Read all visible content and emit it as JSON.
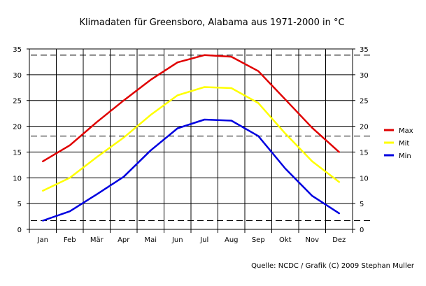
{
  "chart_data": {
    "type": "line",
    "title": "Klimadaten für Greensboro, Alabama aus 1971-2000 in °C",
    "categories": [
      "Jan",
      "Feb",
      "Mär",
      "Apr",
      "Mai",
      "Jun",
      "Jul",
      "Aug",
      "Sep",
      "Okt",
      "Nov",
      "Dez"
    ],
    "ylim": [
      0,
      35
    ],
    "y_ticks": [
      0,
      5,
      10,
      15,
      20,
      25,
      30,
      35
    ],
    "grid": true,
    "legend_position": "right",
    "reference_lines": [
      33.8,
      18.1,
      1.7
    ],
    "series": [
      {
        "name": "Max",
        "color": "#e00000",
        "values": [
          13.2,
          16.3,
          20.8,
          25.0,
          29.0,
          32.4,
          33.8,
          33.5,
          30.7,
          25.2,
          19.7,
          15.0
        ]
      },
      {
        "name": "Mit",
        "color": "#ffff00",
        "values": [
          7.5,
          10.0,
          14.0,
          17.8,
          22.2,
          26.0,
          27.6,
          27.4,
          24.5,
          18.6,
          13.2,
          9.2
        ]
      },
      {
        "name": "Min",
        "color": "#0000e0",
        "values": [
          1.7,
          3.5,
          6.8,
          10.2,
          15.3,
          19.6,
          21.3,
          21.1,
          18.1,
          11.8,
          6.5,
          3.1
        ]
      }
    ]
  },
  "source_text": "Quelle: NCDC / Grafik (C) 2009 Stephan Muller"
}
